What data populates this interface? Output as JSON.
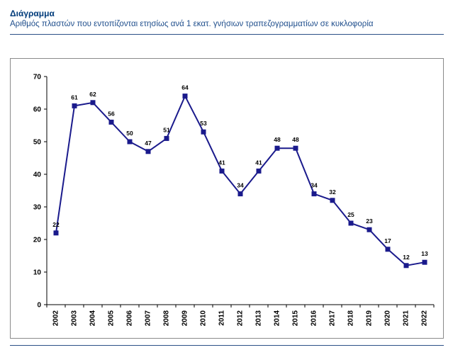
{
  "header": {
    "title": "Διάγραμμα",
    "subtitle": "Αριθμός πλαστών που εντοπίζονται ετησίως ανά 1 εκατ. γνήσιων τραπεζογραμματίων σε κυκλοφορία"
  },
  "colors": {
    "series": "#1a1a8c",
    "text_title": "#003b7a",
    "rule": "#2b4f86"
  },
  "chart_data": {
    "type": "line",
    "title": "",
    "xlabel": "",
    "ylabel": "",
    "ylim": [
      0,
      70
    ],
    "yticks": [
      0,
      10,
      20,
      30,
      40,
      50,
      60,
      70
    ],
    "grid": false,
    "x": [
      "2002",
      "2003",
      "2004",
      "2005",
      "2006",
      "2007",
      "2008",
      "2009",
      "2010",
      "2011",
      "2012",
      "2013",
      "2014",
      "2015",
      "2016",
      "2017",
      "2018",
      "2019",
      "2020",
      "2021",
      "2022"
    ],
    "series": [
      {
        "values": [
          22,
          61,
          62,
          56,
          50,
          47,
          51,
          64,
          53,
          41,
          34,
          41,
          48,
          48,
          34,
          32,
          25,
          23,
          17,
          12,
          13
        ],
        "labels": [
          "22",
          "61",
          "62",
          "56",
          "50",
          "47",
          "51",
          "64",
          "53",
          "41",
          "34",
          "41",
          "48",
          "48",
          "34",
          "32",
          "25",
          "23",
          "17",
          "12",
          "13"
        ]
      }
    ]
  }
}
